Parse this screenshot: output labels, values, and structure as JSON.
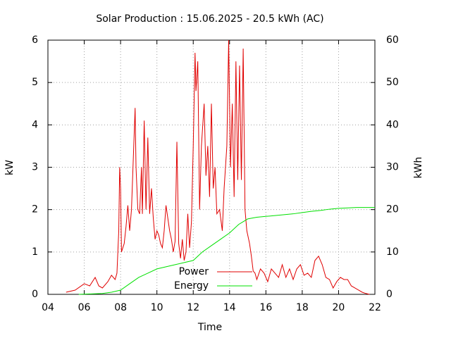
{
  "chart_data": {
    "type": "line",
    "title": "Solar Production : 15.06.2025 - 20.5 kWh (AC)",
    "x_label": "Time",
    "y_label": "kW",
    "y2_label": "kWh",
    "xlim": [
      4,
      22
    ],
    "xticks": [
      {
        "value": 4,
        "label": "04"
      },
      {
        "value": 6,
        "label": "06"
      },
      {
        "value": 8,
        "label": "08"
      },
      10,
      12,
      14,
      16,
      18,
      20,
      22
    ],
    "ylim": [
      0,
      6
    ],
    "yticks": [
      0,
      1,
      2,
      3,
      4,
      5,
      6
    ],
    "y2lim": [
      0,
      60
    ],
    "y2ticks": [
      0,
      10,
      20,
      30,
      40,
      50,
      60
    ],
    "grid": true,
    "legend": "bottom",
    "series": [
      {
        "name": "Power",
        "color": "#e00000",
        "x": [
          5.0,
          5.5,
          6.0,
          6.3,
          6.6,
          6.8,
          7.0,
          7.3,
          7.5,
          7.7,
          7.8,
          7.9,
          7.95,
          8.0,
          8.05,
          8.2,
          8.3,
          8.4,
          8.5,
          8.6,
          8.7,
          8.8,
          8.85,
          8.95,
          9.05,
          9.15,
          9.2,
          9.3,
          9.4,
          9.5,
          9.6,
          9.7,
          9.8,
          9.9,
          10.0,
          10.1,
          10.2,
          10.3,
          10.4,
          10.5,
          10.6,
          10.7,
          10.8,
          10.9,
          11.0,
          11.1,
          11.2,
          11.3,
          11.4,
          11.5,
          11.6,
          11.7,
          11.8,
          11.9,
          12.0,
          12.1,
          12.15,
          12.25,
          12.35,
          12.45,
          12.6,
          12.7,
          12.8,
          12.9,
          13.0,
          13.1,
          13.2,
          13.3,
          13.45,
          13.6,
          13.7,
          13.85,
          13.95,
          14.05,
          14.15,
          14.25,
          14.35,
          14.45,
          14.55,
          14.65,
          14.75,
          14.85,
          14.95,
          15.1,
          15.2,
          15.3,
          15.4,
          15.5,
          15.7,
          15.9,
          16.1,
          16.3,
          16.5,
          16.7,
          16.9,
          17.1,
          17.3,
          17.5,
          17.7,
          17.9,
          18.1,
          18.3,
          18.5,
          18.7,
          18.9,
          19.1,
          19.3,
          19.5,
          19.7,
          19.9,
          20.1,
          20.3,
          20.5,
          20.7,
          20.9,
          21.1,
          21.3,
          21.5,
          21.7
        ],
        "values": [
          0.05,
          0.1,
          0.25,
          0.2,
          0.4,
          0.2,
          0.15,
          0.3,
          0.45,
          0.35,
          0.5,
          1.5,
          3.0,
          2.5,
          1.0,
          1.2,
          1.6,
          2.1,
          1.5,
          2.0,
          3.2,
          4.4,
          3.0,
          2.0,
          1.9,
          3.0,
          1.9,
          4.1,
          2.0,
          3.7,
          1.9,
          2.5,
          1.8,
          1.3,
          1.5,
          1.4,
          1.2,
          1.1,
          1.5,
          2.1,
          1.8,
          1.5,
          1.3,
          1.0,
          1.25,
          3.6,
          1.2,
          0.85,
          1.3,
          0.8,
          1.0,
          1.9,
          1.1,
          1.7,
          3.5,
          5.7,
          4.8,
          5.5,
          2.0,
          3.5,
          4.5,
          2.8,
          3.5,
          2.3,
          4.5,
          2.5,
          3.0,
          1.9,
          2.0,
          1.5,
          2.5,
          3.5,
          6.0,
          3.0,
          4.5,
          2.3,
          5.5,
          2.7,
          5.4,
          2.7,
          5.8,
          2.0,
          1.5,
          1.2,
          0.9,
          0.55,
          0.5,
          0.35,
          0.6,
          0.5,
          0.3,
          0.6,
          0.5,
          0.4,
          0.7,
          0.4,
          0.6,
          0.35,
          0.6,
          0.7,
          0.45,
          0.5,
          0.4,
          0.8,
          0.9,
          0.7,
          0.4,
          0.35,
          0.15,
          0.3,
          0.4,
          0.35,
          0.35,
          0.2,
          0.15,
          0.1,
          0.05,
          0.02,
          0.0
        ]
      },
      {
        "name": "Energy",
        "color": "#00e000",
        "axis": "y2",
        "x": [
          5.7,
          7.0,
          7.5,
          8.0,
          8.5,
          9.0,
          9.5,
          10.0,
          10.5,
          11.0,
          11.5,
          12.0,
          12.5,
          13.0,
          13.5,
          14.0,
          14.5,
          15.0,
          15.5,
          16.0,
          16.5,
          17.0,
          17.5,
          18.0,
          18.5,
          19.0,
          19.5,
          20.0,
          20.5,
          21.0,
          21.5,
          22.0
        ],
        "values": [
          0,
          0.2,
          0.5,
          1,
          2.5,
          4,
          5,
          6,
          6.5,
          7,
          7.5,
          8,
          10,
          11.5,
          13,
          14.5,
          16.5,
          17.8,
          18.2,
          18.4,
          18.6,
          18.8,
          19,
          19.3,
          19.6,
          19.8,
          20.1,
          20.3,
          20.4,
          20.5,
          20.5,
          20.5
        ]
      }
    ]
  }
}
